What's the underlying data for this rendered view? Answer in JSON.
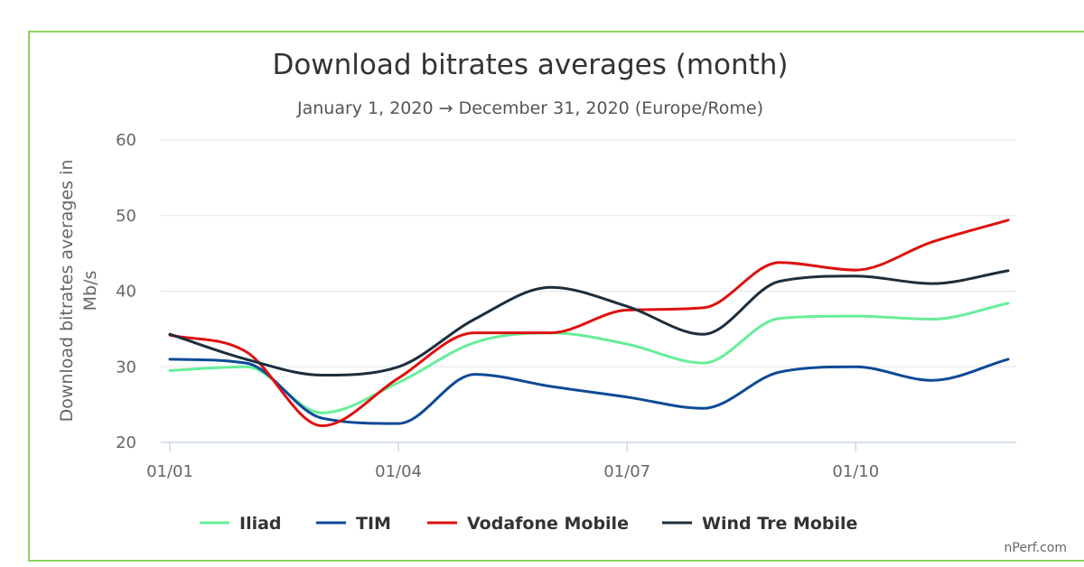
{
  "chart_data": {
    "type": "line",
    "title": "Download bitrates averages (month)",
    "subtitle": "January 1, 2020 → December 31, 2020 (Europe/Rome)",
    "ylabel": [
      "Download bitrates averages in",
      "Mb/s"
    ],
    "xlabel": "",
    "ylim": [
      20,
      60
    ],
    "yticks": [
      20,
      30,
      40,
      50,
      60
    ],
    "x": [
      "01/01",
      "01/02",
      "01/03",
      "01/04",
      "01/05",
      "01/06",
      "01/07",
      "01/08",
      "01/09",
      "01/10",
      "01/11",
      "01/12"
    ],
    "xtick_labels": [
      "01/01",
      "01/04",
      "01/07",
      "01/10"
    ],
    "grid": true,
    "legend_position": "bottom",
    "series": [
      {
        "name": "Iliad",
        "color": "#66ee99",
        "values": [
          29.5,
          30.0,
          23.9,
          27.9,
          33.2,
          34.5,
          33.0,
          30.5,
          36.4,
          36.7,
          36.3,
          38.4
        ]
      },
      {
        "name": "TIM",
        "color": "#0d4a96",
        "values": [
          31.0,
          30.5,
          23.2,
          22.5,
          29.0,
          27.4,
          26.0,
          24.5,
          29.3,
          30.0,
          28.2,
          31.0
        ]
      },
      {
        "name": "Vodafone Mobile",
        "color": "#dd1111",
        "values": [
          34.2,
          32.0,
          22.2,
          28.5,
          34.5,
          34.5,
          37.5,
          37.8,
          43.8,
          42.8,
          46.5,
          49.4
        ]
      },
      {
        "name": "Wind Tre Mobile",
        "color": "#1c2e3d",
        "values": [
          34.3,
          31.0,
          28.9,
          30.0,
          36.3,
          40.5,
          38.0,
          34.3,
          41.3,
          42.0,
          41.0,
          42.7
        ]
      }
    ]
  },
  "credit": "nPerf.com"
}
